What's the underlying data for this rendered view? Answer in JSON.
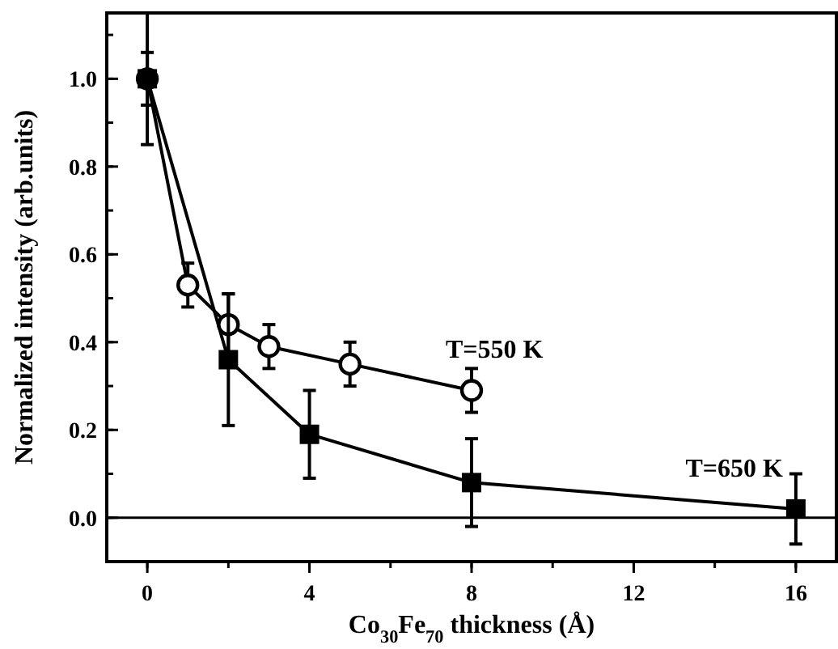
{
  "chart_data": {
    "type": "line",
    "xlabel": "Co$_{30}$Fe$_{70}$ thickness (Å)",
    "ylabel": "Normalized intensity (arb.units)",
    "xlim": [
      -1,
      17
    ],
    "xticks": [
      0,
      4,
      8,
      12,
      16
    ],
    "ylim": [
      -0.1,
      1.15
    ],
    "yticks": [
      {
        "value": 0,
        "label": "0.0"
      },
      {
        "value": 0.2,
        "label": "0.2"
      },
      {
        "value": 0.4,
        "label": "0.4"
      },
      {
        "value": 0.6,
        "label": "0.6"
      },
      {
        "value": 0.8,
        "label": "0.8"
      },
      {
        "value": 1,
        "label": "1.0"
      }
    ],
    "ref_lines": [
      {
        "axis": "y",
        "value": 0
      }
    ],
    "series": [
      {
        "name": "T=550 K",
        "color": "#000000",
        "marker": "circle",
        "x": [
          0,
          1,
          2,
          3,
          5,
          8
        ],
        "values": [
          1.0,
          0.53,
          0.44,
          0.39,
          0.35,
          0.29
        ],
        "errors": [
          0.06,
          0.05,
          0.07,
          0.05,
          0.05,
          0.05
        ]
      },
      {
        "name": "T=650 K",
        "color": "#000000",
        "marker": "square",
        "x": [
          0,
          2,
          4,
          8,
          16
        ],
        "values": [
          1.0,
          0.36,
          0.19,
          0.08,
          0.02
        ],
        "errors": [
          0.15,
          0.15,
          0.1,
          0.1,
          0.08
        ]
      }
    ]
  }
}
